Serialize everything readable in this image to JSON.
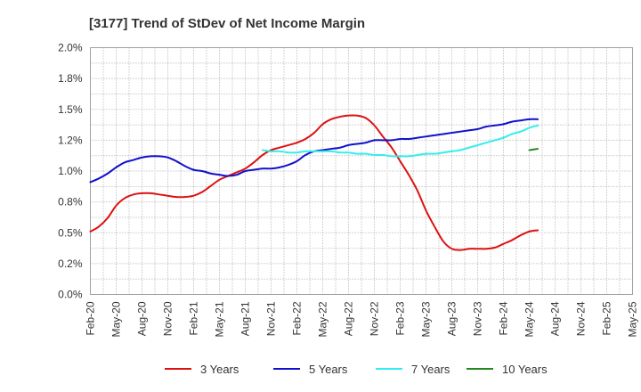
{
  "chart_data": {
    "type": "line",
    "title": "[3177]  Trend of StDev of Net Income Margin",
    "xlabel": "",
    "ylabel": "",
    "ylim": [
      0,
      2.0
    ],
    "y_ticks": [
      {
        "value": 0.0,
        "label": "0.0%"
      },
      {
        "value": 0.25,
        "label": "0.2%"
      },
      {
        "value": 0.5,
        "label": "0.5%"
      },
      {
        "value": 0.75,
        "label": "0.8%"
      },
      {
        "value": 1.0,
        "label": "1.0%"
      },
      {
        "value": 1.25,
        "label": "1.2%"
      },
      {
        "value": 1.5,
        "label": "1.5%"
      },
      {
        "value": 1.75,
        "label": "1.8%"
      },
      {
        "value": 2.0,
        "label": "2.0%"
      }
    ],
    "x_ticks": [
      "Feb-20",
      "May-20",
      "Aug-20",
      "Nov-20",
      "Feb-21",
      "May-21",
      "Aug-21",
      "Nov-21",
      "Feb-22",
      "May-22",
      "Aug-22",
      "Nov-22",
      "Feb-23",
      "May-23",
      "Aug-23",
      "Nov-23",
      "Feb-24",
      "May-24",
      "Aug-24",
      "Nov-24",
      "Feb-25",
      "May-25"
    ],
    "grid": true,
    "legend_position": "bottom",
    "series": [
      {
        "name": "3 Years",
        "color": "#dd1111",
        "points": [
          [
            0,
            0.51
          ],
          [
            0.33,
            0.55
          ],
          [
            0.67,
            0.62
          ],
          [
            1,
            0.72
          ],
          [
            1.33,
            0.78
          ],
          [
            1.67,
            0.81
          ],
          [
            2,
            0.82
          ],
          [
            2.33,
            0.82
          ],
          [
            2.67,
            0.81
          ],
          [
            3,
            0.8
          ],
          [
            3.33,
            0.79
          ],
          [
            3.67,
            0.79
          ],
          [
            4,
            0.8
          ],
          [
            4.33,
            0.83
          ],
          [
            4.67,
            0.88
          ],
          [
            5,
            0.93
          ],
          [
            5.33,
            0.96
          ],
          [
            5.67,
            0.99
          ],
          [
            6,
            1.02
          ],
          [
            6.33,
            1.07
          ],
          [
            6.67,
            1.13
          ],
          [
            7,
            1.17
          ],
          [
            7.33,
            1.19
          ],
          [
            7.67,
            1.21
          ],
          [
            8,
            1.23
          ],
          [
            8.33,
            1.26
          ],
          [
            8.67,
            1.31
          ],
          [
            9,
            1.38
          ],
          [
            9.33,
            1.42
          ],
          [
            9.67,
            1.44
          ],
          [
            10,
            1.45
          ],
          [
            10.33,
            1.45
          ],
          [
            10.67,
            1.43
          ],
          [
            11,
            1.37
          ],
          [
            11.33,
            1.28
          ],
          [
            11.67,
            1.19
          ],
          [
            12,
            1.08
          ],
          [
            12.33,
            0.97
          ],
          [
            12.67,
            0.84
          ],
          [
            13,
            0.68
          ],
          [
            13.33,
            0.55
          ],
          [
            13.67,
            0.43
          ],
          [
            14,
            0.37
          ],
          [
            14.33,
            0.36
          ],
          [
            14.67,
            0.37
          ],
          [
            15,
            0.37
          ],
          [
            15.33,
            0.37
          ],
          [
            15.67,
            0.38
          ],
          [
            16,
            0.41
          ],
          [
            16.33,
            0.44
          ],
          [
            16.67,
            0.48
          ],
          [
            17,
            0.51
          ],
          [
            17.33,
            0.52
          ]
        ]
      },
      {
        "name": "5 Years",
        "color": "#1111cc",
        "points": [
          [
            0,
            0.91
          ],
          [
            0.33,
            0.94
          ],
          [
            0.67,
            0.98
          ],
          [
            1,
            1.03
          ],
          [
            1.33,
            1.07
          ],
          [
            1.67,
            1.09
          ],
          [
            2,
            1.11
          ],
          [
            2.33,
            1.12
          ],
          [
            2.67,
            1.12
          ],
          [
            3,
            1.11
          ],
          [
            3.33,
            1.08
          ],
          [
            3.67,
            1.04
          ],
          [
            4,
            1.01
          ],
          [
            4.33,
            1.0
          ],
          [
            4.67,
            0.98
          ],
          [
            5,
            0.97
          ],
          [
            5.33,
            0.96
          ],
          [
            5.67,
            0.97
          ],
          [
            6,
            1.0
          ],
          [
            6.33,
            1.01
          ],
          [
            6.67,
            1.02
          ],
          [
            7,
            1.02
          ],
          [
            7.33,
            1.03
          ],
          [
            7.67,
            1.05
          ],
          [
            8,
            1.08
          ],
          [
            8.33,
            1.13
          ],
          [
            8.67,
            1.16
          ],
          [
            9,
            1.17
          ],
          [
            9.33,
            1.18
          ],
          [
            9.67,
            1.19
          ],
          [
            10,
            1.21
          ],
          [
            10.33,
            1.22
          ],
          [
            10.67,
            1.23
          ],
          [
            11,
            1.25
          ],
          [
            11.33,
            1.25
          ],
          [
            11.67,
            1.25
          ],
          [
            12,
            1.26
          ],
          [
            12.33,
            1.26
          ],
          [
            12.67,
            1.27
          ],
          [
            13,
            1.28
          ],
          [
            13.33,
            1.29
          ],
          [
            13.67,
            1.3
          ],
          [
            14,
            1.31
          ],
          [
            14.33,
            1.32
          ],
          [
            14.67,
            1.33
          ],
          [
            15,
            1.34
          ],
          [
            15.33,
            1.36
          ],
          [
            15.67,
            1.37
          ],
          [
            16,
            1.38
          ],
          [
            16.33,
            1.4
          ],
          [
            16.67,
            1.41
          ],
          [
            17,
            1.42
          ],
          [
            17.33,
            1.42
          ]
        ]
      },
      {
        "name": "7 Years",
        "color": "#33eeee",
        "points": [
          [
            6.67,
            1.17
          ],
          [
            7,
            1.16
          ],
          [
            7.33,
            1.16
          ],
          [
            7.67,
            1.15
          ],
          [
            8,
            1.15
          ],
          [
            8.33,
            1.16
          ],
          [
            8.67,
            1.16
          ],
          [
            9,
            1.16
          ],
          [
            9.33,
            1.16
          ],
          [
            9.67,
            1.15
          ],
          [
            10,
            1.15
          ],
          [
            10.33,
            1.14
          ],
          [
            10.67,
            1.14
          ],
          [
            11,
            1.13
          ],
          [
            11.33,
            1.13
          ],
          [
            11.67,
            1.12
          ],
          [
            12,
            1.12
          ],
          [
            12.33,
            1.12
          ],
          [
            12.67,
            1.13
          ],
          [
            13,
            1.14
          ],
          [
            13.33,
            1.14
          ],
          [
            13.67,
            1.15
          ],
          [
            14,
            1.16
          ],
          [
            14.33,
            1.17
          ],
          [
            14.67,
            1.19
          ],
          [
            15,
            1.21
          ],
          [
            15.33,
            1.23
          ],
          [
            15.67,
            1.25
          ],
          [
            16,
            1.27
          ],
          [
            16.33,
            1.3
          ],
          [
            16.67,
            1.32
          ],
          [
            17,
            1.35
          ],
          [
            17.33,
            1.37
          ]
        ]
      },
      {
        "name": "10 Years",
        "color": "#228822",
        "points": [
          [
            17,
            1.17
          ],
          [
            17.33,
            1.18
          ]
        ]
      }
    ]
  }
}
